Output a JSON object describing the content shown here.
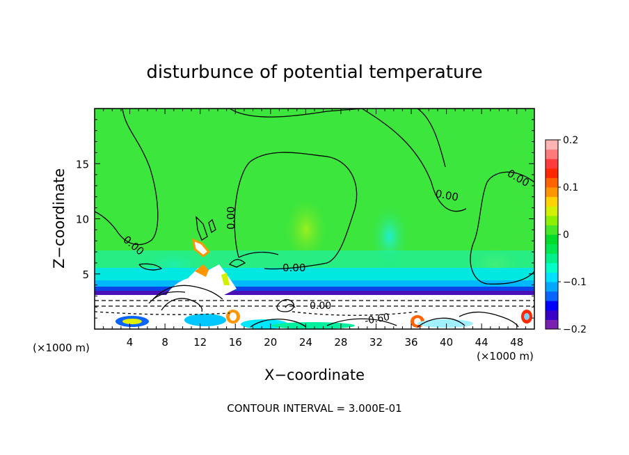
{
  "chart_data": {
    "type": "heatmap",
    "title": "disturbunce of potential temperature",
    "xlabel": "X−coordinate",
    "ylabel": "Z−coordinate",
    "x_unit_left": "(×1000 m)",
    "x_unit_right": "(×1000 m)",
    "xlim": [
      0,
      50
    ],
    "ylim": [
      0,
      20
    ],
    "x_ticks": [
      "4",
      "8",
      "12",
      "16",
      "20",
      "24",
      "28",
      "32",
      "36",
      "40",
      "44",
      "48"
    ],
    "x_tick_values": [
      4,
      8,
      12,
      16,
      20,
      24,
      28,
      32,
      36,
      40,
      44,
      48
    ],
    "y_ticks": [
      "5",
      "10",
      "15"
    ],
    "y_tick_values": [
      5,
      10,
      15
    ],
    "colorbar": {
      "range": [
        -0.2,
        0.2
      ],
      "tick_labels": [
        "0.2",
        "0.1",
        "0",
        "−0.1",
        "−0.2"
      ],
      "tick_values": [
        0.2,
        0.1,
        0,
        -0.1,
        -0.2
      ],
      "colors": [
        "#7a1fb0",
        "#3a00c8",
        "#0000ff",
        "#0a64ff",
        "#00a8ff",
        "#00e0ff",
        "#00ffc8",
        "#00f08c",
        "#00e650",
        "#00dc2a",
        "#46e628",
        "#8cf000",
        "#d2f000",
        "#ffd200",
        "#ff9600",
        "#ff6400",
        "#ff2800",
        "#ff3c3c",
        "#ff7a7a",
        "#ffb4b4"
      ]
    },
    "contour_labels": [
      "0.00",
      "0.00",
      "0.00",
      "0.00",
      "0.00",
      "0.00",
      "-0.60"
    ],
    "footer": "CONTOUR INTERVAL = 3.000E-01",
    "grid": false,
    "legend": "colorbar right"
  },
  "colors": {
    "background_field": "#3ce63c",
    "near_zero_negative": "#00f08c",
    "cyan": "#00e8ff",
    "blue_band": "#0a2cd8",
    "purple_band": "#5a00b4",
    "white_layer": "#ffffff"
  }
}
